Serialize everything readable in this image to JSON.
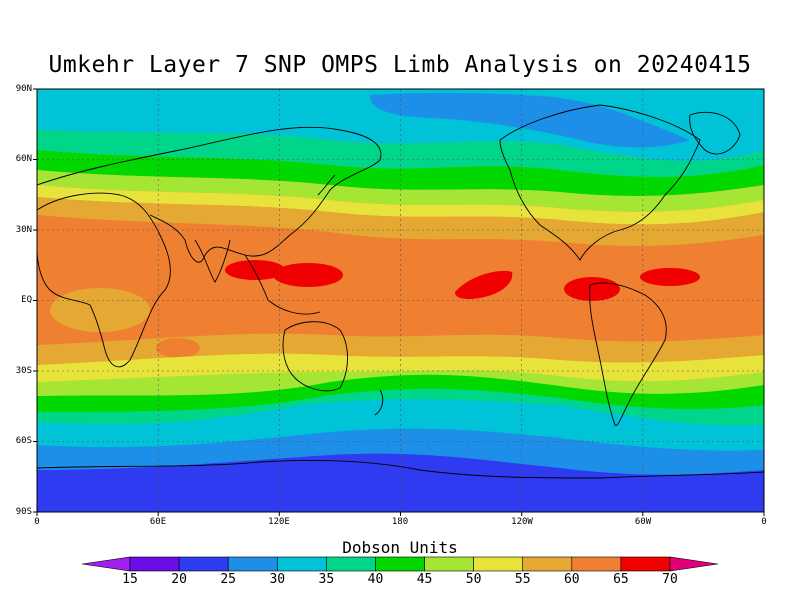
{
  "title": "Umkehr Layer 7 SNP OMPS Limb Analysis on 20240415",
  "y_ticks": [
    "90N",
    "60N",
    "30N",
    "EQ",
    "30S",
    "60S",
    "90S"
  ],
  "x_ticks": [
    "0",
    "60E",
    "120E",
    "180",
    "120W",
    "60W",
    "0"
  ],
  "colorbar": {
    "title": "Dobson Units",
    "labels": [
      "15",
      "20",
      "25",
      "30",
      "35",
      "40",
      "45",
      "50",
      "55",
      "60",
      "65",
      "70"
    ],
    "colors": [
      "#a020f0",
      "#6a0ee8",
      "#2e3bf0",
      "#1d8fe8",
      "#00c3d8",
      "#00d68a",
      "#00d800",
      "#a5e635",
      "#e8e33a",
      "#e5a833",
      "#ef7f31",
      "#f00000",
      "#e0007a"
    ]
  },
  "chart_data": {
    "type": "heatmap",
    "title": "Umkehr Layer 7 SNP OMPS Limb Analysis on 20240415",
    "xlabel": "",
    "ylabel": "",
    "xlim": [
      0,
      360
    ],
    "ylim": [
      -90,
      90
    ],
    "units": "Dobson Units",
    "levels": [
      15,
      20,
      25,
      30,
      35,
      40,
      45,
      50,
      55,
      60,
      65,
      70
    ],
    "grid": true,
    "zonal_profile": {
      "lat": [
        90,
        80,
        70,
        60,
        50,
        45,
        40,
        35,
        30,
        20,
        10,
        0,
        -10,
        -20,
        -25,
        -30,
        -35,
        -40,
        -45,
        -50,
        -55,
        -60,
        -70,
        -80,
        -90
      ],
      "value": [
        32,
        31,
        37,
        41,
        44,
        47,
        50,
        54,
        58,
        61,
        62,
        62,
        61,
        60,
        58,
        55,
        52,
        48,
        44,
        41,
        38,
        34,
        27,
        23,
        22
      ]
    },
    "maxima": [
      {
        "lon": 115,
        "lat": 12,
        "value": 66
      },
      {
        "lon": 135,
        "lat": 10,
        "value": 67
      },
      {
        "lon": 205,
        "lat": 5,
        "value": 66
      },
      {
        "lon": 285,
        "lat": 5,
        "value": 67
      },
      {
        "lon": 320,
        "lat": 8,
        "value": 66
      }
    ]
  }
}
